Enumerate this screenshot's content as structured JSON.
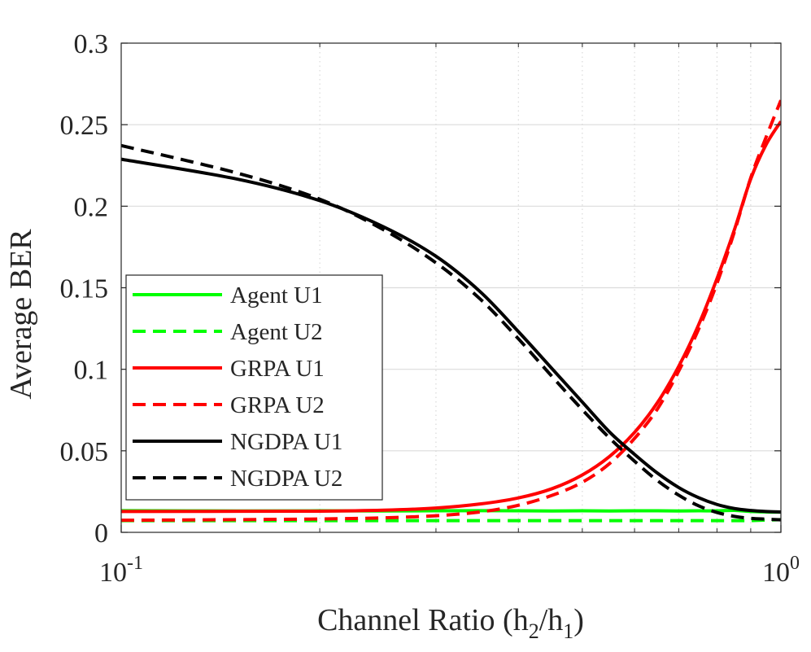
{
  "chart_data": {
    "type": "line",
    "xscale": "log",
    "xlim": [
      0.1,
      1.0
    ],
    "ylim": [
      0,
      0.3
    ],
    "xlabel": "Channel Ratio (h2/h1)",
    "xlabel_parts": {
      "prefix": "Channel Ratio (h",
      "sub1": "2",
      "mid": "/h",
      "sub2": "1",
      "suffix": ")"
    },
    "ylabel": "Average BER",
    "grid": "on",
    "legend_position": "middle-left",
    "x_ticks": [
      {
        "value": 0.1,
        "base": "10",
        "exp": "-1"
      },
      {
        "value": 1.0,
        "base": "10",
        "exp": "0"
      }
    ],
    "y_ticks": [
      {
        "value": 0,
        "label": "0"
      },
      {
        "value": 0.05,
        "label": "0.05"
      },
      {
        "value": 0.1,
        "label": "0.1"
      },
      {
        "value": 0.15,
        "label": "0.15"
      },
      {
        "value": 0.2,
        "label": "0.2"
      },
      {
        "value": 0.25,
        "label": "0.25"
      },
      {
        "value": 0.3,
        "label": "0.3"
      }
    ],
    "x": [
      0.1,
      0.15,
      0.2,
      0.25,
      0.3,
      0.35,
      0.4,
      0.45,
      0.5,
      0.55,
      0.6,
      0.65,
      0.7,
      0.75,
      0.8,
      0.85,
      0.9,
      0.95,
      1.0
    ],
    "series": [
      {
        "name": "Agent U1",
        "color": "#00ff00",
        "dash": "solid",
        "values": [
          0.0133,
          0.0131,
          0.0132,
          0.0131,
          0.0132,
          0.0133,
          0.0132,
          0.0131,
          0.0132,
          0.0131,
          0.0132,
          0.0132,
          0.0131,
          0.0132,
          0.0132,
          0.0135,
          0.0128,
          0.0125,
          0.0124
        ]
      },
      {
        "name": "Agent U2",
        "color": "#00ff00",
        "dash": "dashed",
        "values": [
          0.0072,
          0.0072,
          0.0072,
          0.0072,
          0.0072,
          0.0072,
          0.0072,
          0.0072,
          0.0072,
          0.0072,
          0.0072,
          0.0072,
          0.0072,
          0.0072,
          0.0072,
          0.0072,
          0.0072,
          0.0075,
          0.0078
        ]
      },
      {
        "name": "GRPA U1",
        "color": "#ff0000",
        "dash": "solid",
        "values": [
          0.0128,
          0.0129,
          0.013,
          0.0136,
          0.0149,
          0.0174,
          0.0211,
          0.0268,
          0.0352,
          0.0466,
          0.0613,
          0.0796,
          0.1018,
          0.1271,
          0.1556,
          0.1855,
          0.2167,
          0.2379,
          0.252
        ]
      },
      {
        "name": "GRPA U2",
        "color": "#ff0000",
        "dash": "dashed",
        "values": [
          0.0074,
          0.0078,
          0.0082,
          0.0089,
          0.0102,
          0.0125,
          0.0166,
          0.0227,
          0.0307,
          0.0422,
          0.0576,
          0.0757,
          0.0989,
          0.1244,
          0.1527,
          0.1842,
          0.2174,
          0.2425,
          0.265
        ]
      },
      {
        "name": "NGDPA U1",
        "color": "#000000",
        "dash": "solid",
        "values": [
          0.2288,
          0.2166,
          0.2034,
          0.1873,
          0.1693,
          0.1476,
          0.1231,
          0.1003,
          0.0799,
          0.0615,
          0.0478,
          0.0363,
          0.0275,
          0.0213,
          0.0171,
          0.0146,
          0.0134,
          0.0128,
          0.0125
        ]
      },
      {
        "name": "NGDPA U2",
        "color": "#000000",
        "dash": "dashed",
        "values": [
          0.2372,
          0.2203,
          0.2043,
          0.1855,
          0.1653,
          0.1431,
          0.1187,
          0.0955,
          0.0752,
          0.0578,
          0.0436,
          0.0317,
          0.0228,
          0.0163,
          0.0122,
          0.0098,
          0.0086,
          0.0081,
          0.0077
        ]
      }
    ]
  }
}
